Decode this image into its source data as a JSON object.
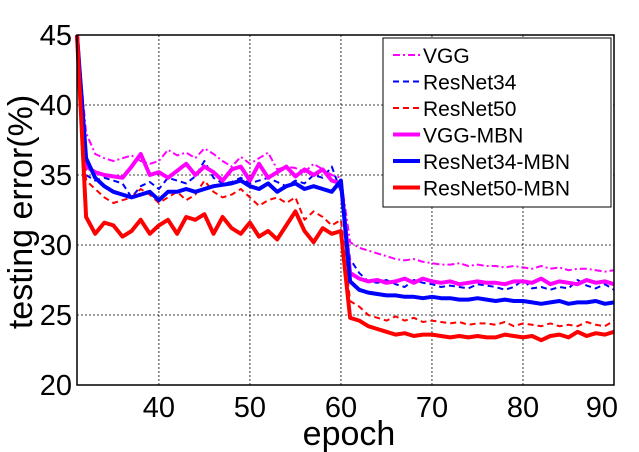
{
  "chart_data": {
    "type": "line",
    "title": "",
    "xlabel": "epoch",
    "ylabel": "testing error(%)",
    "xlim": [
      31,
      90
    ],
    "ylim": [
      20,
      45
    ],
    "xticks": [
      40,
      50,
      60,
      70,
      80,
      90
    ],
    "yticks": [
      20,
      25,
      30,
      35,
      40,
      45
    ],
    "grid": true,
    "legend_position": "top-right",
    "x": [
      31,
      32,
      33,
      34,
      35,
      36,
      37,
      38,
      39,
      40,
      41,
      42,
      43,
      44,
      45,
      46,
      47,
      48,
      49,
      50,
      51,
      52,
      53,
      54,
      55,
      56,
      57,
      58,
      59,
      60,
      61,
      62,
      63,
      64,
      65,
      66,
      67,
      68,
      69,
      70,
      71,
      72,
      73,
      74,
      75,
      76,
      77,
      78,
      79,
      80,
      81,
      82,
      83,
      84,
      85,
      86,
      87,
      88,
      89,
      90
    ],
    "series": [
      {
        "name": "VGG",
        "color": "#ff00ff",
        "style": "dashdot",
        "width": 2,
        "values": [
          45,
          38.0,
          36.5,
          36.2,
          36.0,
          36.2,
          36.4,
          36.0,
          35.8,
          36.0,
          36.8,
          36.4,
          36.6,
          36.2,
          36.9,
          36.5,
          36.0,
          35.6,
          36.3,
          35.8,
          36.2,
          36.6,
          35.4,
          35.6,
          35.5,
          35.2,
          35.8,
          35.4,
          35.0,
          34.8,
          30.2,
          29.8,
          29.6,
          29.4,
          29.2,
          29.0,
          28.9,
          29.0,
          28.8,
          28.7,
          28.6,
          28.6,
          28.7,
          28.5,
          28.6,
          28.5,
          28.5,
          28.4,
          28.5,
          28.4,
          28.3,
          28.5,
          28.3,
          28.4,
          28.2,
          28.3,
          28.3,
          28.2,
          28.1,
          28.2
        ]
      },
      {
        "name": "ResNet34",
        "color": "#0000ff",
        "style": "dashed",
        "width": 2,
        "values": [
          45,
          35.0,
          34.6,
          34.8,
          34.6,
          34.4,
          33.4,
          34.2,
          34.5,
          34.0,
          34.8,
          34.6,
          34.4,
          34.9,
          36.0,
          34.8,
          34.4,
          34.5,
          34.8,
          34.4,
          34.6,
          34.8,
          34.5,
          34.2,
          34.6,
          34.4,
          35.0,
          34.8,
          35.6,
          33.8,
          29.0,
          28.0,
          27.4,
          27.3,
          27.5,
          27.2,
          27.0,
          27.5,
          27.3,
          27.2,
          27.0,
          27.1,
          27.0,
          26.9,
          27.2,
          27.1,
          27.0,
          26.8,
          27.0,
          27.5,
          26.9,
          27.0,
          26.8,
          27.0,
          26.9,
          27.5,
          27.1,
          26.9,
          27.2,
          26.8
        ]
      },
      {
        "name": "ResNet50",
        "color": "#ff0000",
        "style": "dashed",
        "width": 2,
        "values": [
          45,
          34.6,
          34.0,
          33.4,
          33.0,
          33.2,
          33.4,
          34.0,
          33.6,
          33.0,
          33.4,
          33.8,
          33.2,
          33.6,
          34.6,
          33.8,
          33.4,
          33.6,
          34.0,
          33.4,
          32.8,
          33.2,
          33.4,
          33.0,
          33.4,
          31.8,
          32.4,
          32.0,
          31.4,
          31.8,
          26.0,
          25.6,
          25.0,
          24.8,
          24.6,
          24.9,
          24.6,
          24.8,
          24.5,
          24.6,
          24.5,
          24.4,
          24.5,
          24.3,
          24.4,
          24.4,
          24.3,
          24.5,
          24.2,
          24.4,
          24.3,
          24.2,
          24.4,
          24.2,
          24.3,
          24.2,
          24.5,
          24.3,
          24.2,
          24.6
        ]
      },
      {
        "name": "VGG-MBN",
        "color": "#ff00ff",
        "style": "solid",
        "width": 4,
        "values": [
          45,
          35.6,
          35.2,
          35.0,
          34.9,
          34.8,
          35.6,
          36.5,
          35.0,
          35.2,
          34.8,
          35.3,
          35.8,
          35.0,
          35.6,
          35.2,
          34.6,
          35.4,
          35.6,
          34.6,
          35.8,
          34.8,
          35.2,
          35.6,
          34.9,
          35.4,
          35.0,
          35.4,
          34.6,
          34.4,
          28.0,
          27.6,
          27.4,
          27.5,
          27.3,
          27.4,
          27.6,
          27.3,
          27.6,
          27.4,
          27.3,
          27.4,
          27.2,
          27.3,
          27.4,
          27.3,
          27.3,
          27.2,
          27.4,
          27.4,
          27.3,
          27.6,
          27.2,
          27.4,
          27.3,
          27.2,
          27.5,
          27.3,
          27.4,
          27.2
        ]
      },
      {
        "name": "ResNet34-MBN",
        "color": "#0000ff",
        "style": "solid",
        "width": 4,
        "values": [
          45,
          36.2,
          34.8,
          34.2,
          33.8,
          33.6,
          33.4,
          33.6,
          33.8,
          33.2,
          33.8,
          33.8,
          34.0,
          33.8,
          34.0,
          34.2,
          34.3,
          34.4,
          34.6,
          34.2,
          34.0,
          34.4,
          33.8,
          34.2,
          34.4,
          34.0,
          34.2,
          34.0,
          33.8,
          34.6,
          27.4,
          26.8,
          26.6,
          26.5,
          26.4,
          26.4,
          26.3,
          26.3,
          26.2,
          26.3,
          26.2,
          26.2,
          26.1,
          26.1,
          26.2,
          26.1,
          26.0,
          26.1,
          26.0,
          26.0,
          25.9,
          25.8,
          25.9,
          26.0,
          25.8,
          25.9,
          25.9,
          26.0,
          25.8,
          25.9
        ]
      },
      {
        "name": "ResNet50-MBN",
        "color": "#ff0000",
        "style": "solid",
        "width": 4,
        "values": [
          45,
          32.0,
          30.8,
          31.6,
          31.4,
          30.6,
          31.0,
          31.8,
          30.8,
          31.4,
          31.8,
          30.8,
          32.0,
          31.8,
          32.2,
          30.8,
          32.0,
          31.2,
          30.8,
          31.6,
          30.6,
          31.0,
          30.4,
          31.4,
          32.4,
          31.0,
          30.2,
          31.2,
          30.8,
          31.0,
          24.8,
          24.6,
          24.2,
          24.0,
          23.8,
          23.6,
          23.7,
          23.5,
          23.6,
          23.6,
          23.5,
          23.4,
          23.5,
          23.4,
          23.5,
          23.4,
          23.4,
          23.6,
          23.5,
          23.4,
          23.5,
          23.2,
          23.5,
          23.6,
          23.4,
          23.8,
          23.5,
          23.7,
          23.6,
          23.8
        ]
      }
    ]
  }
}
